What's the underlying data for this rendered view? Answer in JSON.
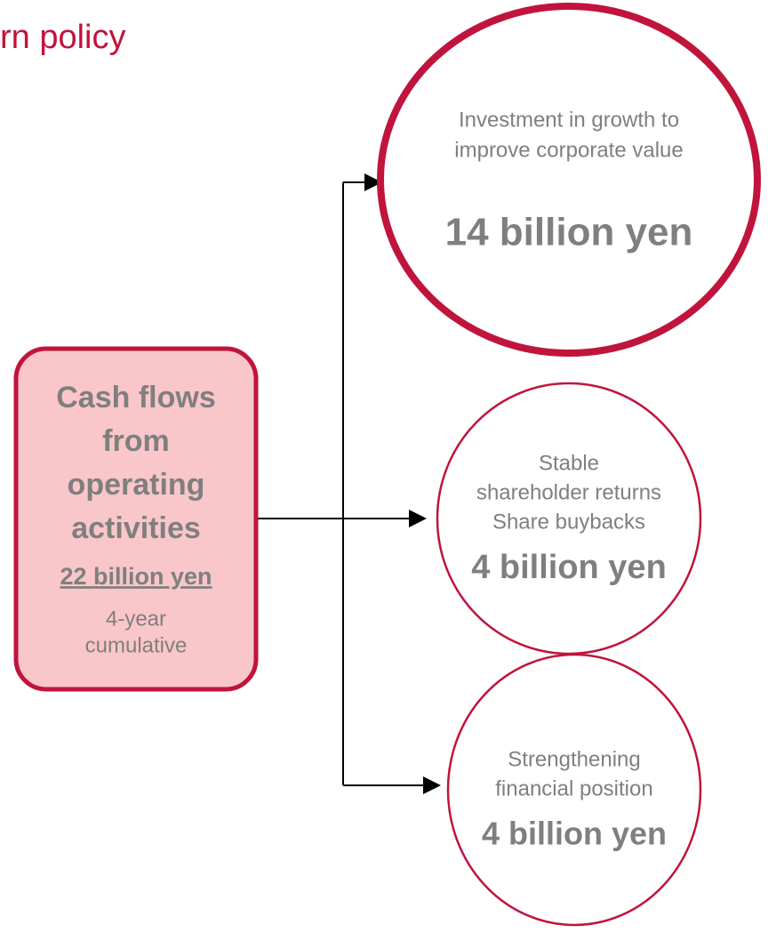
{
  "title": "rn policy",
  "source": {
    "lines": [
      "Cash flows",
      "from",
      "operating",
      "activities"
    ],
    "amount": "22 billion yen",
    "notes": [
      "4-year",
      "cumulative"
    ]
  },
  "nodes": [
    {
      "lines": [
        "Investment in growth to",
        "improve corporate value"
      ],
      "amount": "14 billion yen"
    },
    {
      "lines": [
        "Stable",
        "shareholder returns",
        "Share buybacks"
      ],
      "amount": "4 billion yen"
    },
    {
      "lines": [
        "Strengthening",
        "financial position"
      ],
      "amount": "4 billion yen"
    }
  ]
}
